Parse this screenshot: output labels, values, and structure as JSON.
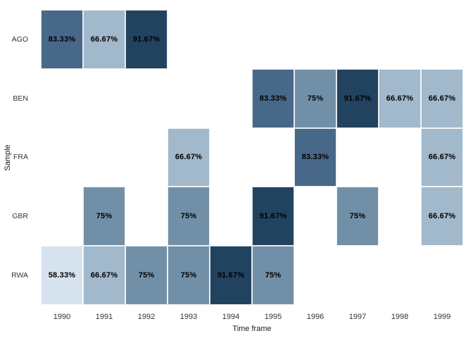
{
  "chart_data": {
    "type": "heatmap",
    "title": "",
    "xlabel": "Time frame",
    "ylabel": "Sample",
    "rows": [
      "AGO",
      "BEN",
      "FRA",
      "GBR",
      "RWA"
    ],
    "columns": [
      "1990",
      "1991",
      "1992",
      "1993",
      "1994",
      "1995",
      "1996",
      "1997",
      "1998",
      "1999"
    ],
    "cells": [
      {
        "row": "AGO",
        "col": "1990",
        "value": 83.33,
        "label": "83.33%"
      },
      {
        "row": "AGO",
        "col": "1991",
        "value": 66.67,
        "label": "66.67%"
      },
      {
        "row": "AGO",
        "col": "1992",
        "value": 91.67,
        "label": "91.67%"
      },
      {
        "row": "BEN",
        "col": "1995",
        "value": 83.33,
        "label": "83.33%"
      },
      {
        "row": "BEN",
        "col": "1996",
        "value": 75,
        "label": "75%"
      },
      {
        "row": "BEN",
        "col": "1997",
        "value": 91.67,
        "label": "91.67%"
      },
      {
        "row": "BEN",
        "col": "1998",
        "value": 66.67,
        "label": "66.67%"
      },
      {
        "row": "BEN",
        "col": "1999",
        "value": 66.67,
        "label": "66.67%"
      },
      {
        "row": "FRA",
        "col": "1993",
        "value": 66.67,
        "label": "66.67%"
      },
      {
        "row": "FRA",
        "col": "1996",
        "value": 83.33,
        "label": "83.33%"
      },
      {
        "row": "FRA",
        "col": "1999",
        "value": 66.67,
        "label": "66.67%"
      },
      {
        "row": "GBR",
        "col": "1991",
        "value": 75,
        "label": "75%"
      },
      {
        "row": "GBR",
        "col": "1993",
        "value": 75,
        "label": "75%"
      },
      {
        "row": "GBR",
        "col": "1995",
        "value": 91.67,
        "label": "91.67%"
      },
      {
        "row": "GBR",
        "col": "1997",
        "value": 75,
        "label": "75%"
      },
      {
        "row": "GBR",
        "col": "1999",
        "value": 66.67,
        "label": "66.67%"
      },
      {
        "row": "RWA",
        "col": "1990",
        "value": 58.33,
        "label": "58.33%"
      },
      {
        "row": "RWA",
        "col": "1991",
        "value": 66.67,
        "label": "66.67%"
      },
      {
        "row": "RWA",
        "col": "1992",
        "value": 75,
        "label": "75%"
      },
      {
        "row": "RWA",
        "col": "1993",
        "value": 75,
        "label": "75%"
      },
      {
        "row": "RWA",
        "col": "1994",
        "value": 91.67,
        "label": "91.67%"
      },
      {
        "row": "RWA",
        "col": "1995",
        "value": 75,
        "label": "75%"
      }
    ],
    "value_colors": {
      "58.33": "#d6e3ee",
      "66.67": "#a2b8cb",
      "75": "#7190a8",
      "83.33": "#48688a",
      "91.67": "#21435f"
    },
    "cell_text_color": "#000000",
    "axis_text_color": "#333333",
    "background": "#ffffff",
    "grid": false,
    "legend": "none"
  }
}
